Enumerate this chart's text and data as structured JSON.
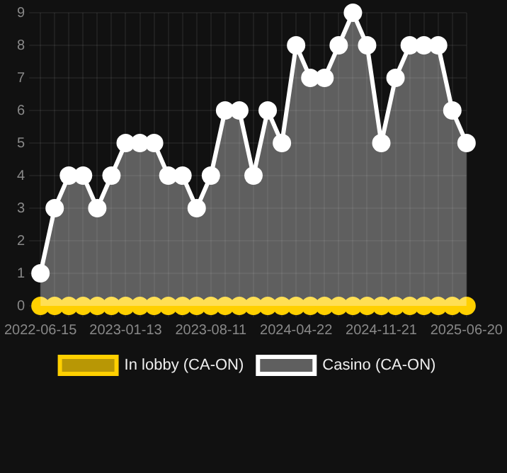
{
  "chart_data": {
    "type": "area",
    "categories": [
      "2022-06-15",
      null,
      null,
      null,
      null,
      null,
      "2023-01-13",
      null,
      null,
      null,
      null,
      null,
      "2023-08-11",
      null,
      null,
      null,
      null,
      null,
      "2024-04-22",
      null,
      null,
      null,
      null,
      null,
      "2024-11-21",
      null,
      null,
      null,
      null,
      null,
      "2025-06-20"
    ],
    "series": [
      {
        "name": "In lobby (CA-ON)",
        "type": "line",
        "color": "#ffd000",
        "values": [
          0,
          0,
          0,
          0,
          0,
          0,
          0,
          0,
          0,
          0,
          0,
          0,
          0,
          0,
          0,
          0,
          0,
          0,
          0,
          0,
          0,
          0,
          0,
          0,
          0,
          0,
          0,
          0,
          0,
          0,
          0
        ]
      },
      {
        "name": "Casino (CA-ON)",
        "color": "#ffffff",
        "values": [
          1,
          3,
          4,
          4,
          3,
          4,
          5,
          5,
          5,
          4,
          4,
          3,
          4,
          6,
          6,
          4,
          6,
          5,
          8,
          7,
          7,
          8,
          9,
          8,
          5,
          7,
          8,
          8,
          8,
          6,
          5
        ]
      }
    ],
    "ylim": [
      0,
      9
    ],
    "yticks": [
      0,
      1,
      2,
      3,
      4,
      5,
      6,
      7,
      8,
      9
    ],
    "grid": true,
    "legend": "bottom",
    "marker": "circle"
  }
}
